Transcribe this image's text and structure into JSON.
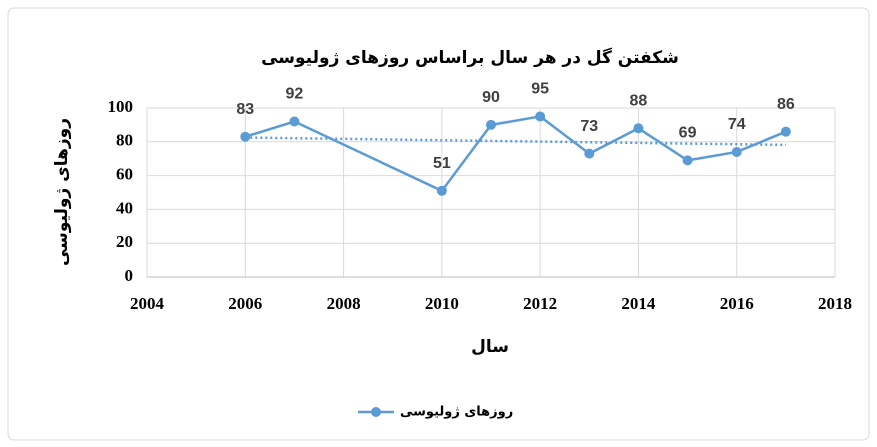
{
  "chart_data": {
    "type": "line",
    "title": "شکفتن گل در هر سال براساس روزهای ژولیوسی",
    "x_label": "سال",
    "y_label": "روزهای ژولیوسی",
    "x": [
      2006,
      2007,
      2010,
      2011,
      2012,
      2013,
      2014,
      2015,
      2016,
      2017
    ],
    "series": [
      {
        "name": "روزهای ژولیوسی",
        "color": "#5b9bd5",
        "values": [
          83,
          92,
          51,
          90,
          95,
          73,
          88,
          69,
          74,
          86
        ]
      }
    ],
    "xlim": [
      2004,
      2018
    ],
    "xticks": [
      2004,
      2006,
      2008,
      2010,
      2012,
      2014,
      2016,
      2018
    ],
    "ylim": [
      0,
      100
    ],
    "yticks": [
      0,
      20,
      40,
      60,
      80,
      100
    ],
    "grid": true,
    "trendline": true,
    "data_labels": true,
    "legend": "bottom"
  }
}
